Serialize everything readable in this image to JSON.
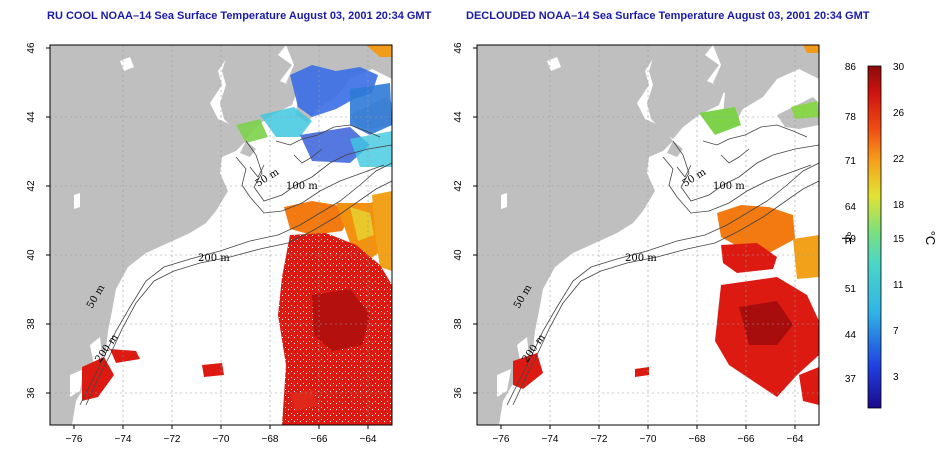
{
  "titles": {
    "left": "RU COOL NOAA–14 Sea Surface Temperature August 03, 2001 20:34 GMT",
    "right": "DECLOUDED NOAA–14 Sea Surface Temperature August 03, 2001 20:34 GMT"
  },
  "axes": {
    "lon_ticks": [
      "−76",
      "−74",
      "−72",
      "−70",
      "−68",
      "−66",
      "−64"
    ],
    "lat_ticks": [
      "36",
      "38",
      "40",
      "42",
      "44",
      "46"
    ]
  },
  "contours": {
    "labels": [
      "50 m",
      "100 m",
      "200 m",
      "50 m",
      "200 m"
    ]
  },
  "colorbar": {
    "fahrenheit_ticks": [
      "86",
      "78",
      "71",
      "64",
      "59",
      "51",
      "44",
      "37"
    ],
    "celsius_ticks": [
      "30",
      "26",
      "22",
      "18",
      "15",
      "11",
      "7",
      "3"
    ],
    "fahrenheit_unit": "°F",
    "celsius_unit": "°C"
  },
  "colors": {
    "land": "#bfbfbf",
    "ocean": "#ffffff",
    "warm": "#dd1a12",
    "hot": "#a80d0d",
    "orange": "#f27a10",
    "yellow": "#e8e82a",
    "green": "#7dd24a",
    "cyan": "#3ec8e0",
    "blue": "#2a55d8",
    "title": "#1a1aa8"
  }
}
